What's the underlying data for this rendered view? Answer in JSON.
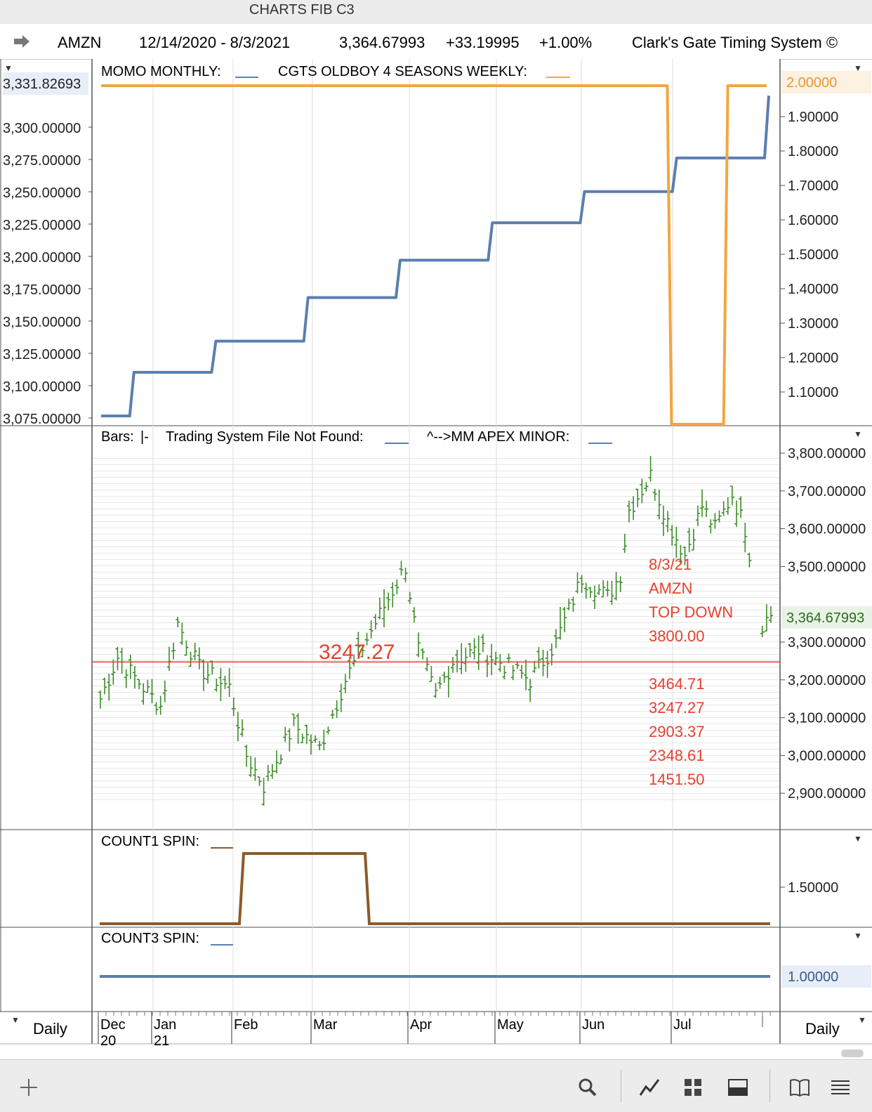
{
  "window": {
    "title": "CHARTS FIB C3"
  },
  "header": {
    "symbol": "AMZN",
    "date_range": "12/14/2020 - 8/3/2021",
    "last": "3,364.67993",
    "change": "+33.19995",
    "change_pct": "+1.00%",
    "system": "Clark's Gate Timing System ©"
  },
  "panels": {
    "top": {
      "legend_momo": "MOMO MONTHLY:",
      "legend_oldboy": "CGTS OLDBOY 4 SEASONS WEEKLY:",
      "left_current": "3,331.82693",
      "left_ticks": [
        "3,300.00000",
        "3,275.00000",
        "3,250.00000",
        "3,225.00000",
        "3,200.00000",
        "3,175.00000",
        "3,150.00000",
        "3,125.00000",
        "3,100.00000",
        "3,075.00000"
      ],
      "right_current": "2.00000",
      "right_ticks": [
        "1.90000",
        "1.80000",
        "1.70000",
        "1.60000",
        "1.50000",
        "1.40000",
        "1.30000",
        "1.20000",
        "1.10000"
      ]
    },
    "price": {
      "legend_bars": "Bars:",
      "legend_bars_sym": "|-",
      "legend_trading": "Trading System File Not Found:",
      "legend_apex": "^-->MM APEX MINOR:",
      "right_ticks": [
        "3,800.00000",
        "3,700.00000",
        "3,600.00000",
        "3,500.00000",
        "3,300.00000",
        "3,200.00000",
        "3,100.00000",
        "3,000.00000",
        "2,900.00000"
      ],
      "right_current": "3,364.67993",
      "hline_label": "3247.27",
      "annotations": [
        "8/3/21",
        "AMZN",
        "TOP DOWN",
        "3800.00",
        "3464.71",
        "3247.27",
        "2903.37",
        "2348.61",
        "1451.50"
      ]
    },
    "count1": {
      "legend": "COUNT1 SPIN:",
      "right_tick": "1.50000"
    },
    "count3": {
      "legend": "COUNT3 SPIN:",
      "right_tick": "1.00000"
    }
  },
  "xaxis": {
    "months": [
      "Dec",
      "Jan",
      "Feb",
      "Mar",
      "Apr",
      "May",
      "Jun",
      "Jul"
    ],
    "years": [
      "20",
      "21"
    ],
    "period_left": "Daily",
    "period_right": "Daily"
  },
  "colors": {
    "momo": "#5b7fae",
    "oldboy": "#f2a640",
    "bars": "#3c8c2a",
    "hline": "#e04030",
    "count1": "#8c5a2a",
    "count3": "#5b7fae"
  },
  "icons": [
    "plus-icon",
    "search-icon",
    "line-chart-icon",
    "grid-icon",
    "panel-icon",
    "book-icon",
    "menu-icon"
  ],
  "chart_data": [
    {
      "type": "line",
      "name": "top-indicators",
      "series": [
        {
          "name": "MOMO MONTHLY",
          "steps": [
            [
              0,
              3070
            ],
            [
              3,
              3105
            ],
            [
              11,
              3130
            ],
            [
              20,
              3165
            ],
            [
              29,
              3195
            ],
            [
              38,
              3225
            ],
            [
              47,
              3250
            ],
            [
              56,
              3277
            ],
            [
              65,
              3327
            ]
          ]
        },
        {
          "name": "CGTS OLDBOY 4 SEASONS WEEKLY",
          "steps": [
            [
              0,
              2.0
            ],
            [
              55.5,
              1.0
            ],
            [
              61,
              2.0
            ]
          ]
        }
      ],
      "ylim_left": [
        3065,
        3335
      ],
      "ylim_right": [
        1.0,
        2.0
      ]
    },
    {
      "type": "bar",
      "name": "AMZN daily bars",
      "ylim": [
        2880,
        3800
      ],
      "hline": 3247.27,
      "pivots": [
        [
          0,
          3150
        ],
        [
          4,
          3260
        ],
        [
          10,
          3180
        ],
        [
          14,
          3130
        ],
        [
          18,
          3350
        ],
        [
          23,
          3230
        ],
        [
          30,
          3180
        ],
        [
          34,
          3000
        ],
        [
          38,
          2920
        ],
        [
          45,
          3080
        ],
        [
          51,
          3020
        ],
        [
          57,
          3200
        ],
        [
          63,
          3330
        ],
        [
          71,
          3500
        ],
        [
          74,
          3280
        ],
        [
          78,
          3160
        ],
        [
          82,
          3250
        ],
        [
          88,
          3280
        ],
        [
          100,
          3200
        ],
        [
          106,
          3300
        ],
        [
          112,
          3470
        ],
        [
          118,
          3420
        ],
        [
          121,
          3480
        ],
        [
          123,
          3650
        ],
        [
          128,
          3740
        ],
        [
          132,
          3620
        ],
        [
          136,
          3530
        ],
        [
          140,
          3660
        ],
        [
          143,
          3600
        ],
        [
          147,
          3690
        ],
        [
          150,
          3600
        ],
        [
          154,
          3350
        ],
        [
          156,
          3370
        ]
      ]
    }
  ]
}
